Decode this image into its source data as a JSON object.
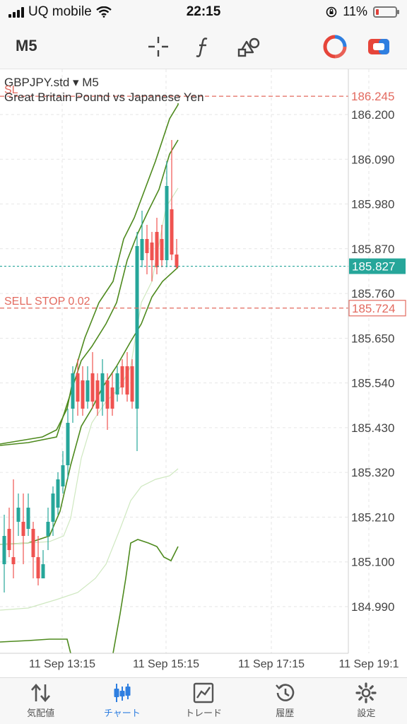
{
  "status_bar": {
    "carrier": "UQ mobile",
    "time": "22:15",
    "battery": "11%"
  },
  "toolbar": {
    "timeframe": "M5",
    "icons": [
      "crosshair-icon",
      "function-icon",
      "objects-icon",
      "one-click-trading-icon",
      "trade-button-icon"
    ]
  },
  "chart": {
    "symbol": "GBPJPY.std",
    "timeframe": "M5",
    "description": "Great Britain Pound vs Japanese Yen",
    "sl_label": "SL",
    "sl_price": "186.245",
    "sell_stop_label": "SELL STOP 0.02",
    "sell_stop_price": "185.724",
    "bid_price": "185.827",
    "price_axis": [
      "186.200",
      "186.090",
      "185.980",
      "185.870",
      "185.760",
      "185.650",
      "185.540",
      "185.430",
      "185.320",
      "185.210",
      "185.100",
      "184.990"
    ],
    "time_axis": [
      "11 Sep 13:15",
      "11 Sep 15:15",
      "11 Sep 17:15",
      "11 Sep 19:1"
    ],
    "colors": {
      "bull": "#26a69a",
      "bear": "#ef5350",
      "band": "#4e8a1e",
      "band_inner": "#cfe8c0",
      "sl": "#e36a5f",
      "bid": "#26a69a",
      "grid": "#e6e6e6"
    }
  },
  "tabbar": {
    "items": [
      {
        "label": "気配値",
        "icon": "quotes-icon"
      },
      {
        "label": "チャート",
        "icon": "chart-icon"
      },
      {
        "label": "トレード",
        "icon": "trade-icon"
      },
      {
        "label": "履歴",
        "icon": "history-icon"
      },
      {
        "label": "設定",
        "icon": "settings-icon"
      }
    ],
    "active": "チャート"
  }
}
